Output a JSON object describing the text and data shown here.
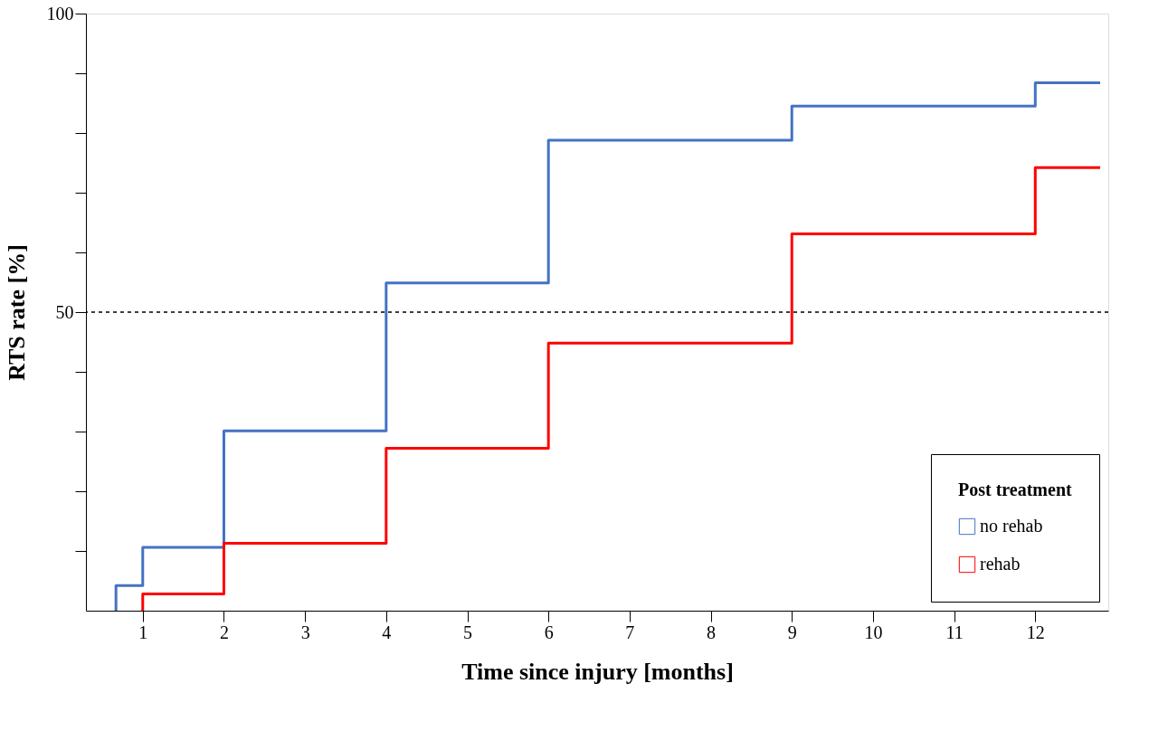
{
  "chart_data": {
    "type": "step",
    "xlabel": "Time since injury [months]",
    "ylabel": "RTS rate [%]",
    "legend_title": "Post treatment",
    "series": [
      {
        "name": "no rehab",
        "color": "#4472c4",
        "x": [
          0.67,
          0.67,
          1,
          2,
          4,
          6,
          9,
          12,
          12.8
        ],
        "values": [
          0,
          4.2,
          10.6,
          30.1,
          54.9,
          78.8,
          84.5,
          88.4,
          88.4
        ]
      },
      {
        "name": "rehab",
        "color": "#ff0000",
        "x": [
          1,
          1,
          2,
          4,
          6,
          9,
          12,
          12.8
        ],
        "values": [
          0,
          2.8,
          11.3,
          27.2,
          44.8,
          63.1,
          74.2,
          74.2
        ]
      }
    ],
    "xlim": [
      0.3,
      12.9
    ],
    "xticks": [
      1,
      2,
      3,
      4,
      5,
      6,
      7,
      8,
      9,
      10,
      11,
      12
    ],
    "ylim": [
      0,
      100
    ],
    "yticks": [
      {
        "value": 10,
        "label": null
      },
      {
        "value": 20,
        "label": null
      },
      {
        "value": 30,
        "label": null
      },
      {
        "value": 40,
        "label": null
      },
      50,
      {
        "value": 60,
        "label": null
      },
      {
        "value": 70,
        "label": null
      },
      {
        "value": 80,
        "label": null
      },
      {
        "value": 90,
        "label": null
      },
      100
    ],
    "ref_lines": [
      {
        "axis": "y",
        "value": 50,
        "label": null,
        "color": "#000000",
        "line_style": "dashed"
      }
    ],
    "legend": "bottom right",
    "grid": false,
    "line_style": "solid"
  }
}
